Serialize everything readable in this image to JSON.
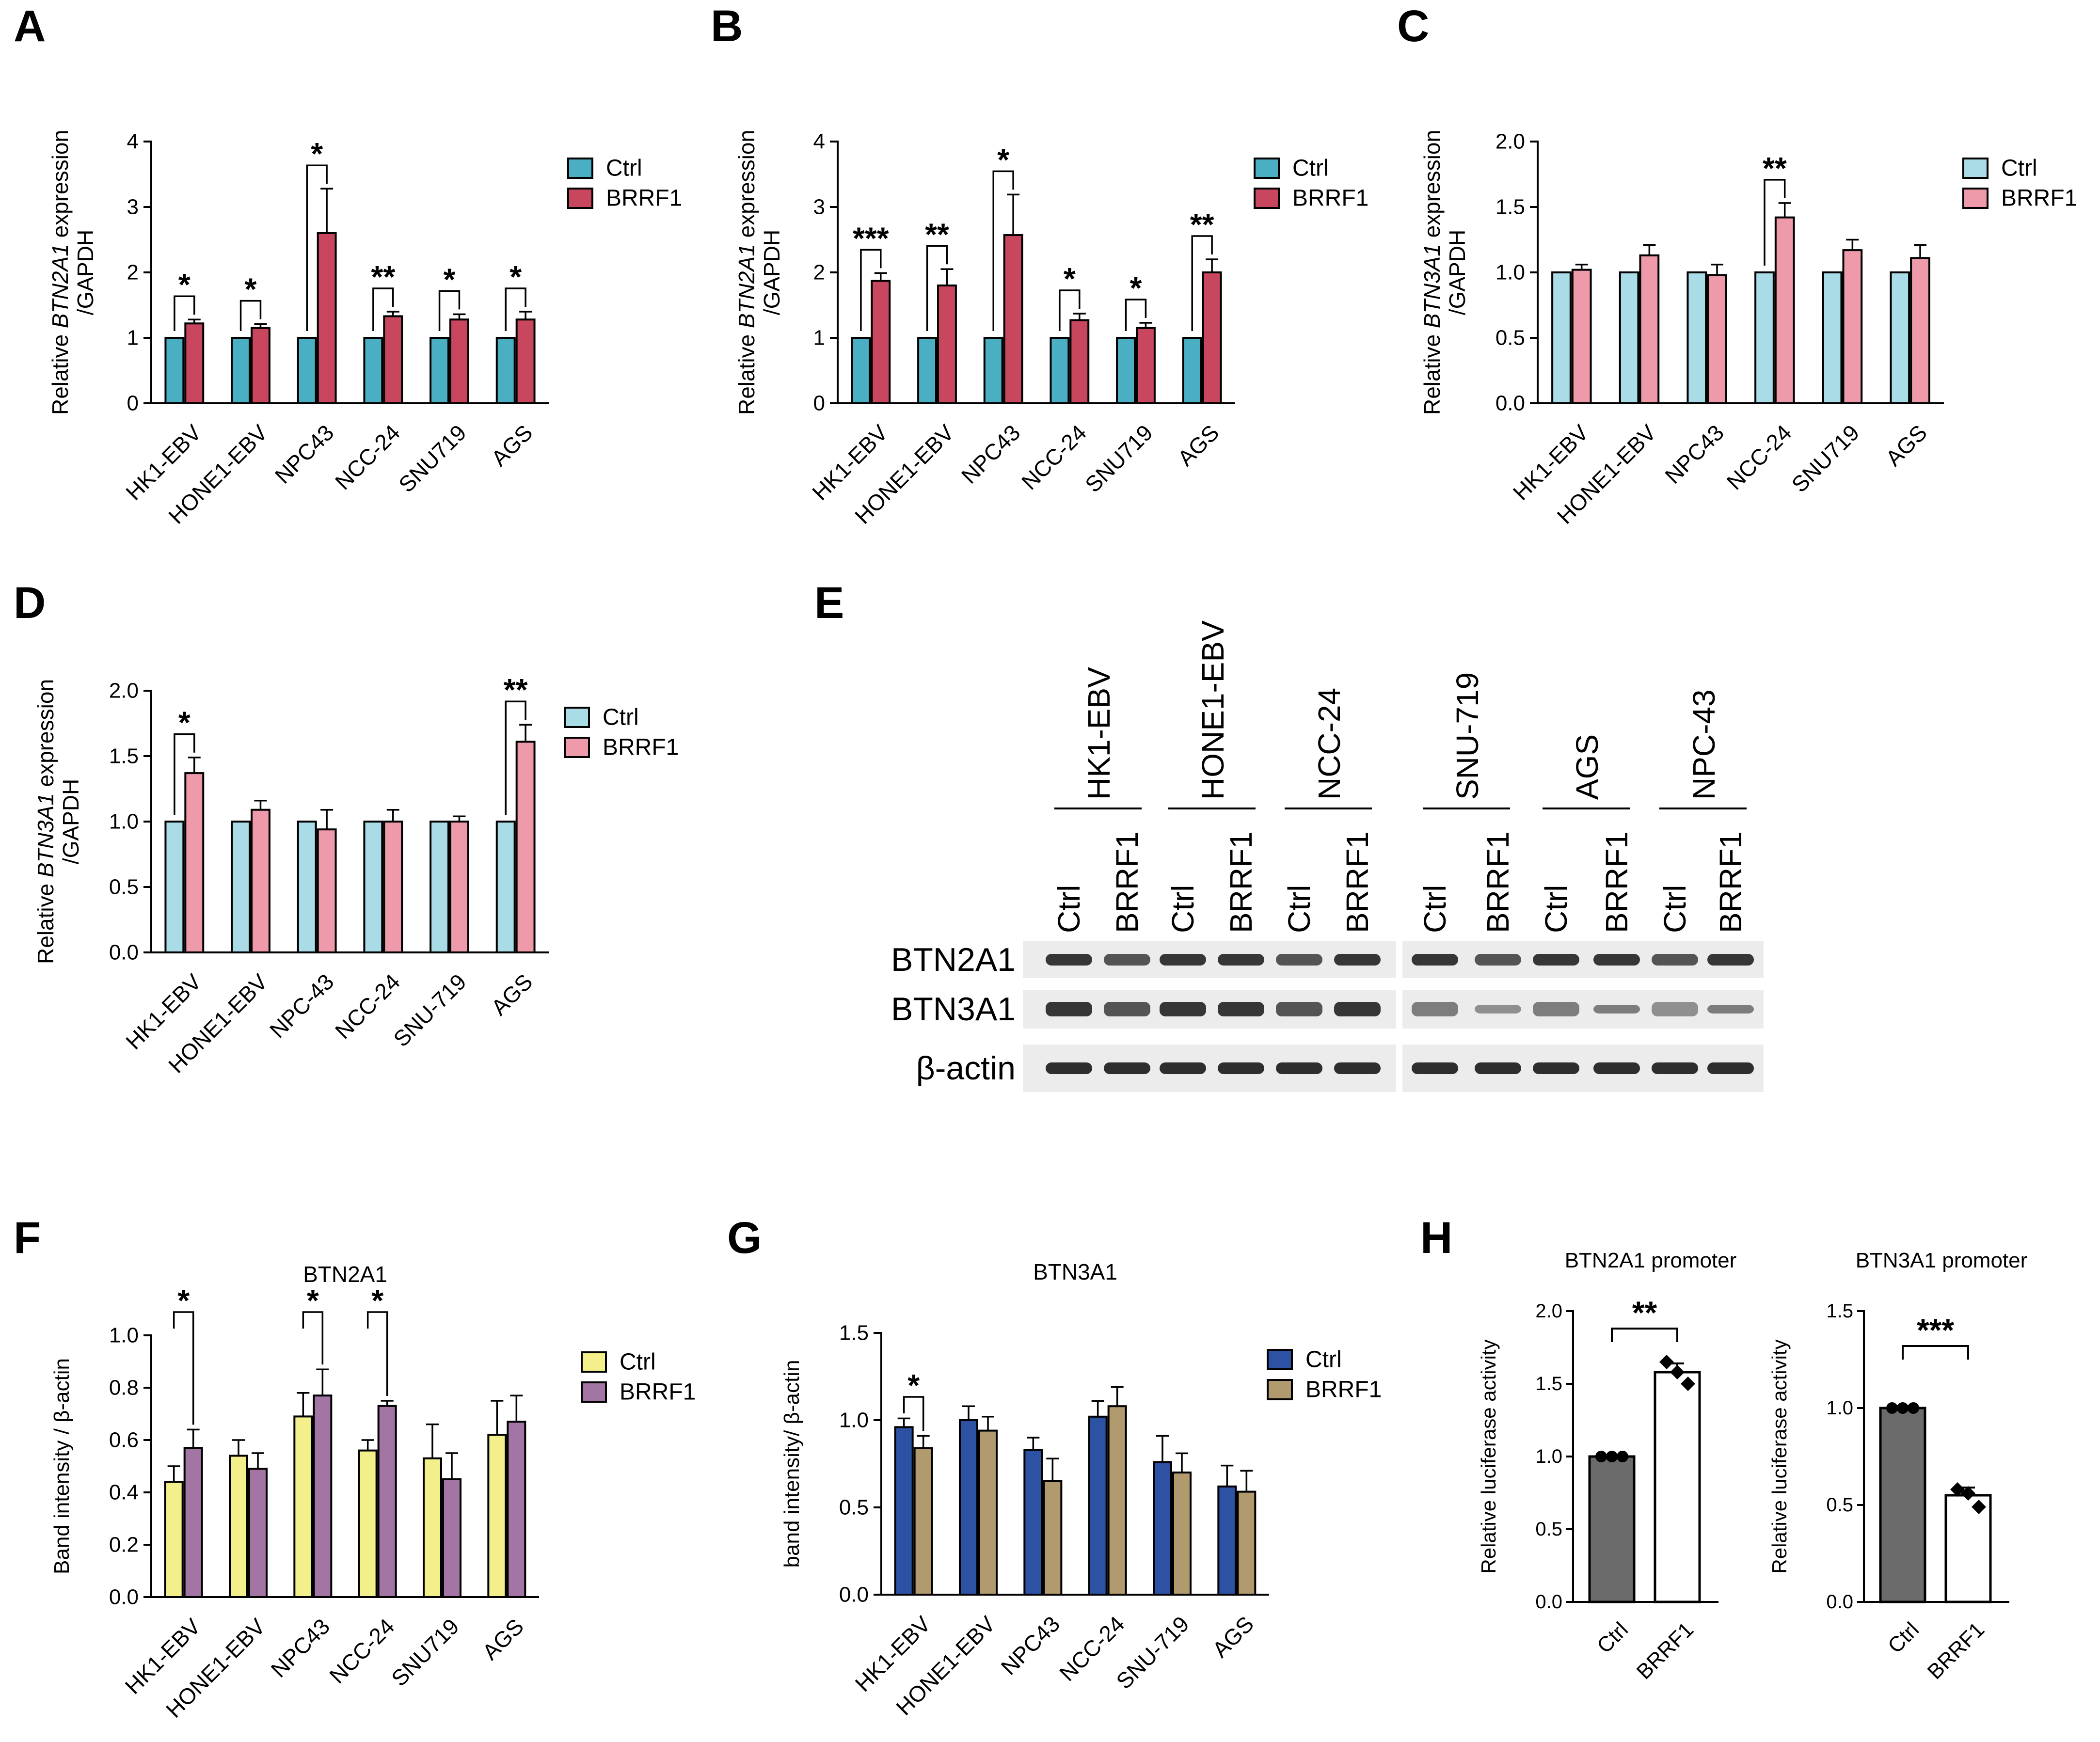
{
  "figure": {
    "panel_letters": [
      "A",
      "B",
      "C",
      "D",
      "E",
      "F",
      "G",
      "H"
    ]
  },
  "chart_data": [
    {
      "id": "A",
      "type": "bar",
      "ylabel_prefix": "Relative ",
      "ylabel_gene": "BTN2A1",
      "ylabel_suffix": " expression",
      "ylabel_line2": "/GAPDH",
      "categories": [
        "HK1-EBV",
        "HONE1-EBV",
        "NPC43",
        "NCC-24",
        "SNU719",
        "AGS"
      ],
      "ylim": [
        0,
        4
      ],
      "yticks": [
        "0",
        "1",
        "2",
        "3",
        "4"
      ],
      "series": [
        {
          "name": "Ctrl",
          "color": "#4AAFC2",
          "values": [
            1,
            1,
            1,
            1,
            1,
            1
          ],
          "errors": [
            0,
            0,
            0,
            0,
            0,
            0
          ]
        },
        {
          "name": "BRRF1",
          "color": "#C8475F",
          "values": [
            1.22,
            1.15,
            2.6,
            1.33,
            1.28,
            1.28
          ],
          "errors": [
            0.06,
            0.06,
            0.68,
            0.07,
            0.08,
            0.12
          ]
        }
      ],
      "significance": [
        "*",
        "*",
        "*",
        "**",
        "*",
        "*"
      ],
      "legend": "right"
    },
    {
      "id": "B",
      "type": "bar",
      "ylabel_prefix": "Relative ",
      "ylabel_gene": "BTN2A1",
      "ylabel_suffix": " expression",
      "ylabel_line2": "/GAPDH",
      "categories": [
        "HK1-EBV",
        "HONE1-EBV",
        "NPC43",
        "NCC-24",
        "SNU719",
        "AGS"
      ],
      "ylim": [
        0,
        4
      ],
      "yticks": [
        "0",
        "1",
        "2",
        "3",
        "4"
      ],
      "series": [
        {
          "name": "Ctrl",
          "color": "#4AAFC2",
          "values": [
            1,
            1,
            1,
            1,
            1,
            1
          ],
          "errors": [
            0,
            0,
            0,
            0,
            0,
            0
          ]
        },
        {
          "name": "BRRF1",
          "color": "#C8475F",
          "values": [
            1.87,
            1.8,
            2.57,
            1.27,
            1.15,
            2.0
          ],
          "errors": [
            0.12,
            0.25,
            0.62,
            0.1,
            0.08,
            0.2
          ]
        }
      ],
      "significance": [
        "***",
        "**",
        "*",
        "*",
        "*",
        "**"
      ],
      "legend": "right"
    },
    {
      "id": "C",
      "type": "bar",
      "ylabel_prefix": "Relative ",
      "ylabel_gene": "BTN3A1",
      "ylabel_suffix": " expression",
      "ylabel_line2": "/GAPDH",
      "categories": [
        "HK1-EBV",
        "HONE1-EBV",
        "NPC43",
        "NCC-24",
        "SNU719",
        "AGS"
      ],
      "ylim": [
        0,
        2
      ],
      "yticks": [
        "0.0",
        "0.5",
        "1.0",
        "1.5",
        "2.0"
      ],
      "series": [
        {
          "name": "Ctrl",
          "color": "#A9DCE6",
          "values": [
            1,
            1,
            1,
            1,
            1,
            1
          ],
          "errors": [
            0,
            0,
            0,
            0,
            0,
            0
          ]
        },
        {
          "name": "BRRF1",
          "color": "#EE9AAB",
          "values": [
            1.02,
            1.13,
            0.98,
            1.42,
            1.17,
            1.11
          ],
          "errors": [
            0.04,
            0.08,
            0.08,
            0.11,
            0.08,
            0.1
          ]
        }
      ],
      "significance": [
        "",
        "",
        "",
        "**",
        "",
        ""
      ],
      "legend": "right"
    },
    {
      "id": "D",
      "type": "bar",
      "ylabel_prefix": "Relative ",
      "ylabel_gene": "BTN3A1",
      "ylabel_suffix": " expression",
      "ylabel_line2": "/GAPDH",
      "categories": [
        "HK1-EBV",
        "HONE1-EBV",
        "NPC-43",
        "NCC-24",
        "SNU-719",
        "AGS"
      ],
      "ylim": [
        0,
        2
      ],
      "yticks": [
        "0.0",
        "0.5",
        "1.0",
        "1.5",
        "2.0"
      ],
      "series": [
        {
          "name": "Ctrl",
          "color": "#A9DCE6",
          "values": [
            1,
            1,
            1,
            1,
            1,
            1
          ],
          "errors": [
            0,
            0,
            0,
            0,
            0,
            0
          ]
        },
        {
          "name": "BRRF1",
          "color": "#EE9AAB",
          "values": [
            1.37,
            1.09,
            0.94,
            1.0,
            1.0,
            1.61
          ],
          "errors": [
            0.12,
            0.07,
            0.15,
            0.09,
            0.04,
            0.13
          ]
        }
      ],
      "significance": [
        "*",
        "",
        "",
        "",
        "",
        "**"
      ],
      "legend": "right"
    },
    {
      "id": "F",
      "type": "bar",
      "title": "BTN2A1",
      "ylabel": "Band intensity / β-actin",
      "categories": [
        "HK1-EBV",
        "HONE1-EBV",
        "NPC43",
        "NCC-24",
        "SNU719",
        "AGS"
      ],
      "ylim": [
        0,
        1
      ],
      "yticks": [
        "0.0",
        "0.2",
        "0.4",
        "0.6",
        "0.8",
        "1.0"
      ],
      "series": [
        {
          "name": "Ctrl",
          "color": "#F3F08B",
          "values": [
            0.44,
            0.54,
            0.69,
            0.56,
            0.53,
            0.62
          ],
          "errors": [
            0.06,
            0.06,
            0.09,
            0.04,
            0.13,
            0.13
          ]
        },
        {
          "name": "BRRF1",
          "color": "#A375A5",
          "values": [
            0.57,
            0.49,
            0.77,
            0.73,
            0.45,
            0.67
          ],
          "errors": [
            0.07,
            0.06,
            0.1,
            0.02,
            0.1,
            0.1
          ]
        }
      ],
      "significance": [
        "*",
        "",
        "*",
        "*",
        "",
        ""
      ],
      "legend": "right"
    },
    {
      "id": "G",
      "type": "bar",
      "title": "BTN3A1",
      "ylabel": "band intensity/ β-actin",
      "categories": [
        "HK1-EBV",
        "HONE1-EBV",
        "NPC43",
        "NCC-24",
        "SNU-719",
        "AGS"
      ],
      "ylim": [
        0,
        1.5
      ],
      "yticks": [
        "0.0",
        "0.5",
        "1.0",
        "1.5"
      ],
      "series": [
        {
          "name": "Ctrl",
          "color": "#2D52A4",
          "values": [
            0.96,
            1.0,
            0.83,
            1.02,
            0.76,
            0.62
          ],
          "errors": [
            0.05,
            0.08,
            0.07,
            0.09,
            0.15,
            0.12
          ]
        },
        {
          "name": "BRRF1",
          "color": "#B09A6E",
          "values": [
            0.84,
            0.94,
            0.65,
            1.08,
            0.7,
            0.59
          ],
          "errors": [
            0.07,
            0.08,
            0.13,
            0.11,
            0.11,
            0.12
          ]
        }
      ],
      "significance": [
        "*",
        "",
        "",
        "",
        "",
        ""
      ],
      "legend": "right"
    },
    {
      "id": "H1",
      "type": "bar",
      "title": "BTN2A1 promoter",
      "ylabel": "Relative luciferase activity",
      "categories": [
        "Ctrl",
        "BRRF1"
      ],
      "ylim": [
        0,
        2
      ],
      "yticks": [
        "0.0",
        "0.5",
        "1.0",
        "1.5",
        "2.0"
      ],
      "values": [
        1.0,
        1.58
      ],
      "errors": [
        0.01,
        0.06
      ],
      "colors": [
        "#6B6B6B",
        "#FFFFFF"
      ],
      "points": [
        [
          1.0,
          1.0,
          1.0
        ],
        [
          1.65,
          1.58,
          1.5
        ]
      ],
      "significance": "**"
    },
    {
      "id": "H2",
      "type": "bar",
      "title": "BTN3A1 promoter",
      "ylabel": "Relative luciferase activity",
      "categories": [
        "Ctrl",
        "BRRF1"
      ],
      "ylim": [
        0,
        1.5
      ],
      "yticks": [
        "0.0",
        "0.5",
        "1.0",
        "1.5"
      ],
      "values": [
        1.0,
        0.55
      ],
      "errors": [
        0.01,
        0.04
      ],
      "colors": [
        "#6B6B6B",
        "#FFFFFF"
      ],
      "points": [
        [
          1.0,
          1.0,
          1.0
        ],
        [
          0.58,
          0.56,
          0.49
        ]
      ],
      "significance": "***"
    }
  ],
  "blot": {
    "cell_lines": [
      "HK1-EBV",
      "HONE1-EBV",
      "NCC-24",
      "SNU-719",
      "AGS",
      "NPC-43"
    ],
    "lane_labels": [
      "Ctrl",
      "BRRF1"
    ],
    "rows": [
      "BTN2A1",
      "BTN3A1",
      "β-actin"
    ]
  }
}
